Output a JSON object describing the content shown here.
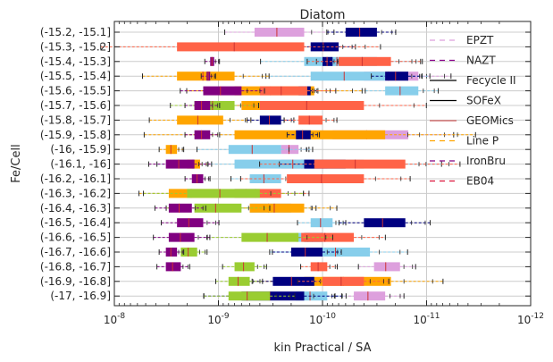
{
  "chart_data": {
    "type": "box",
    "title": "Diatom",
    "xlabel": "kin Practical / SA",
    "ylabel": "Fe/Cell",
    "x_scale": "log",
    "x_reversed": true,
    "xlim": [
      1e-08,
      1e-12
    ],
    "x_ticks": [
      1e-08,
      1e-09,
      1e-10,
      1e-11,
      1e-12
    ],
    "x_tick_labels": [
      "10-8",
      "10-9",
      "10-10",
      "10-11",
      "10-12"
    ],
    "grid": true,
    "legend_position": "upper-right",
    "categories": [
      "(-15.2, -15.1]",
      "(-15.3, -15.2]",
      "(-15.4, -15.3]",
      "(-15.5, -15.4]",
      "(-15.6, -15.5]",
      "(-15.7, -15.6]",
      "(-15.8, -15.7]",
      "(-15.9, -15.8]",
      "(-16, -15.9]",
      "(-16.1, -16]",
      "(-16.2, -16.1]",
      "(-16.3, -16.2]",
      "(-16.4, -16.3]",
      "(-16.5, -16.4]",
      "(-16.6, -16.5]",
      "(-16.7, -16.6]",
      "(-16.8, -16.7]",
      "(-16.9, -16.8]",
      "(-17, -16.9]"
    ],
    "series": [
      {
        "name": "EPZT",
        "color": "#DDA0DD",
        "boxes": [
          [
            4.5e-10,
            1.5e-10
          ],
          null,
          null,
          [
            4e-11,
            1.2e-11
          ],
          null,
          null,
          null,
          [
            8e-11,
            1.5e-11
          ],
          [
            2.5e-10,
            1.7e-10
          ],
          [
            2.5e-10,
            9e-11
          ],
          null,
          null,
          null,
          null,
          null,
          null,
          [
            3.2e-11,
            1.8e-11
          ],
          null,
          [
            5e-11,
            2.5e-11
          ]
        ]
      },
      {
        "name": "NAZT",
        "color": "#87CEEB",
        "boxes": [
          null,
          null,
          [
            1.5e-10,
            3e-11
          ],
          [
            1.3e-10,
            2.5e-11
          ],
          [
            2.5e-11,
            1.2e-11
          ],
          null,
          null,
          null,
          [
            8e-10,
            2.5e-10
          ],
          [
            7e-10,
            4e-11
          ],
          [
            5e-10,
            2.5e-10
          ],
          [
            7e-10,
            4e-10
          ],
          [
            5e-10,
            2e-10
          ],
          [
            1.3e-10,
            8e-11
          ],
          [
            1.8e-10,
            1e-10
          ],
          [
            1.4e-10,
            3.5e-11
          ],
          null,
          null,
          [
            1.8e-10,
            9e-11
          ]
        ]
      },
      {
        "name": "Fecycle II",
        "color": "#FFA500",
        "boxes": [
          null,
          null,
          null,
          [
            2.5e-09,
            7e-10
          ],
          [
            7e-10,
            1.2e-10
          ],
          [
            6e-10,
            1.3e-10
          ],
          [
            2.5e-09,
            9e-10
          ],
          [
            7e-10,
            2.5e-11
          ],
          [
            3.2e-09,
            2.5e-09
          ],
          [
            2e-09,
            1.5e-09
          ],
          null,
          [
            3e-09,
            1e-09
          ],
          [
            5e-10,
            1.5e-10
          ],
          null,
          null,
          null,
          null,
          [
            1.5e-10,
            2.2e-11
          ],
          null
        ]
      },
      {
        "name": "SOFeX",
        "color": "#000080",
        "boxes": [
          [
            6e-11,
            3e-11
          ],
          [
            1.3e-10,
            7e-11
          ],
          [
            1e-10,
            8e-11
          ],
          [
            2.5e-11,
            1.5e-11
          ],
          [
            1.7e-10,
            1.3e-10
          ],
          null,
          [
            4e-10,
            2.5e-10
          ],
          [
            1.8e-10,
            1.3e-10
          ],
          null,
          [
            1.5e-10,
            6e-11
          ],
          null,
          null,
          null,
          [
            4e-11,
            1.6e-11
          ],
          [
            1.5e-10,
            1e-10
          ],
          [
            2e-10,
            1e-10
          ],
          null,
          [
            3e-10,
            1.2e-10
          ],
          [
            6e-10,
            1.5e-10
          ]
        ]
      },
      {
        "name": "GEOMics",
        "color": "#FF6347",
        "boxes": [
          null,
          [
            2.5e-09,
            1.5e-10
          ],
          [
            7e-11,
            2.2e-11
          ],
          null,
          [
            4e-10,
            1.4e-10
          ],
          [
            4e-10,
            4e-11
          ],
          [
            1.7e-10,
            1e-10
          ],
          null,
          null,
          [
            1.2e-10,
            1.6e-11
          ],
          [
            2.2e-10,
            4e-11
          ],
          [
            7e-10,
            2.5e-10
          ],
          null,
          null,
          [
            1.6e-10,
            5e-11
          ],
          null,
          [
            1.3e-10,
            9e-11
          ],
          [
            1e-10,
            4e-11
          ],
          null
        ]
      },
      {
        "name": "Line P",
        "color": "#9ACD32",
        "boxes": [
          null,
          null,
          null,
          null,
          null,
          [
            1.7e-09,
            7e-10
          ],
          null,
          null,
          null,
          null,
          null,
          [
            2e-09,
            4e-10
          ],
          [
            1.7e-09,
            6e-10
          ],
          null,
          [
            6e-10,
            1.7e-10
          ],
          [
            2.3e-09,
            1.6e-09
          ],
          [
            7e-10,
            4.5e-10
          ],
          [
            8e-10,
            5e-10
          ],
          [
            8e-10,
            3.2e-10
          ]
        ]
      },
      {
        "name": "IronBru",
        "color": "#800080",
        "boxes": [
          null,
          null,
          [
            1.2e-09,
            1.1e-09
          ],
          [
            1.3e-09,
            1.2e-09
          ],
          [
            1.4e-09,
            6e-10
          ],
          [
            1.7e-09,
            1.2e-09
          ],
          null,
          [
            1.7e-09,
            1.2e-09
          ],
          null,
          [
            3.2e-09,
            1.7e-09
          ],
          [
            1.8e-09,
            1.4e-09
          ],
          null,
          [
            3e-09,
            1.8e-09
          ],
          [
            2.5e-09,
            1.4e-09
          ],
          [
            3e-09,
            1.7e-09
          ],
          [
            3.2e-09,
            2.5e-09
          ],
          [
            3.2e-09,
            2.3e-09
          ],
          null,
          null
        ]
      },
      {
        "name": "EB04",
        "color": "#FA8072",
        "boxes": [
          null,
          null,
          null,
          null,
          null,
          null,
          null,
          null,
          null,
          null,
          null,
          null,
          null,
          null,
          null,
          null,
          null,
          null,
          null
        ]
      }
    ]
  },
  "legend_colors": {
    "EPZT": "#DDA0DD",
    "NAZT": "#8B008B",
    "Fecycle II": "#000000",
    "SOFeX": "#000000",
    "GEOMics": "#CD5C5C",
    "Line P": "#FFA500",
    "IronBru": "#800080",
    "EB04": "#DC143C"
  }
}
